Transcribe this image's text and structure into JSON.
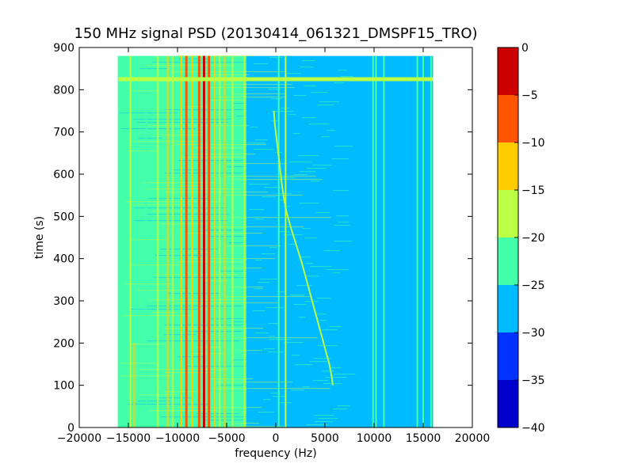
{
  "chart_data": {
    "type": "heatmap",
    "title": "150 MHz signal PSD (20130414_061321_DMSPF15_TRO)",
    "xlabel": "frequency (Hz)",
    "ylabel": "time (s)",
    "xlim": [
      -20000,
      20000
    ],
    "ylim": [
      0,
      900
    ],
    "xticks": [
      -20000,
      -15000,
      -10000,
      -5000,
      0,
      5000,
      10000,
      15000,
      20000
    ],
    "xtick_labels": [
      "−20000",
      "−15000",
      "−10000",
      "−5000",
      "0",
      "5000",
      "10000",
      "15000",
      "20000"
    ],
    "yticks": [
      0,
      100,
      200,
      300,
      400,
      500,
      600,
      700,
      800,
      900
    ],
    "ytick_labels": [
      "0",
      "100",
      "200",
      "300",
      "400",
      "500",
      "600",
      "700",
      "800",
      "900"
    ],
    "data_extent": {
      "x": [
        -16000,
        16000
      ],
      "y": [
        0,
        880
      ]
    },
    "colorbar": {
      "levels": [
        -40,
        -35,
        -30,
        -25,
        -20,
        -15,
        -10,
        -5,
        0
      ],
      "tick_labels": [
        "−40",
        "−35",
        "−30",
        "−25",
        "−20",
        "−15",
        "−10",
        "−5",
        "0"
      ],
      "colors": [
        "#0000cc",
        "#0033ff",
        "#00bbff",
        "#44ffaa",
        "#bbff44",
        "#ffcc00",
        "#ff5500",
        "#cc0000"
      ]
    },
    "background_fields": [
      {
        "x_range": [
          -16000,
          -3000
        ],
        "level_color": "#44ffaa"
      },
      {
        "x_range": [
          -3000,
          16000
        ],
        "level_color": "#00bbff"
      }
    ],
    "vertical_features": [
      {
        "x": -16000,
        "y_range": [
          0,
          880
        ],
        "color": "#44ffaa"
      },
      {
        "x": -14800,
        "y_range": [
          0,
          880
        ],
        "color": "#bbff44"
      },
      {
        "x": -14400,
        "y_range": [
          0,
          200
        ],
        "color": "#ffcc00"
      },
      {
        "x": -13200,
        "y_range": [
          0,
          880
        ],
        "color": "#44ffaa"
      },
      {
        "x": -12000,
        "y_range": [
          0,
          880
        ],
        "color": "#bbff44"
      },
      {
        "x": -11000,
        "y_range": [
          0,
          880
        ],
        "color": "#ffcc00"
      },
      {
        "x": -10500,
        "y_range": [
          0,
          880
        ],
        "color": "#bbff44"
      },
      {
        "x": -9600,
        "y_range": [
          0,
          880
        ],
        "color": "#ffcc00"
      },
      {
        "x": -9100,
        "y_range": [
          0,
          880
        ],
        "color": "#ff5500"
      },
      {
        "x": -8500,
        "y_range": [
          0,
          880
        ],
        "color": "#ffcc00"
      },
      {
        "x": -7800,
        "y_range": [
          0,
          880
        ],
        "color": "#ff5500"
      },
      {
        "x": -7300,
        "y_range": [
          0,
          880
        ],
        "color": "#cc0000"
      },
      {
        "x": -6800,
        "y_range": [
          0,
          880
        ],
        "color": "#ff5500"
      },
      {
        "x": -6200,
        "y_range": [
          0,
          880
        ],
        "color": "#ffcc00"
      },
      {
        "x": -5700,
        "y_range": [
          0,
          880
        ],
        "color": "#bbff44"
      },
      {
        "x": -5200,
        "y_range": [
          0,
          880
        ],
        "color": "#ffcc00"
      },
      {
        "x": -4400,
        "y_range": [
          0,
          880
        ],
        "color": "#bbff44"
      },
      {
        "x": -3200,
        "y_range": [
          0,
          880
        ],
        "color": "#bbff44"
      },
      {
        "x": 300,
        "y_range": [
          0,
          880
        ],
        "color": "#44ffaa"
      },
      {
        "x": 1000,
        "y_range": [
          0,
          880
        ],
        "color": "#bbff44"
      },
      {
        "x": 9900,
        "y_range": [
          0,
          880
        ],
        "color": "#44ffaa"
      },
      {
        "x": 10200,
        "y_range": [
          0,
          880
        ],
        "color": "#44ffaa"
      },
      {
        "x": 11000,
        "y_range": [
          0,
          880
        ],
        "color": "#44ffaa"
      },
      {
        "x": 14400,
        "y_range": [
          0,
          880
        ],
        "color": "#44ffaa"
      },
      {
        "x": 15000,
        "y_range": [
          0,
          880
        ],
        "color": "#44ffaa"
      },
      {
        "x": 15800,
        "y_range": [
          0,
          880
        ],
        "color": "#44ffaa"
      }
    ],
    "horizontal_features": [
      {
        "y": 825,
        "x_range": [
          -16000,
          16000
        ],
        "color": "#bbff44"
      }
    ],
    "doppler_trace": {
      "color": "#bbff44",
      "points": [
        [
          -200,
          750
        ],
        [
          -100,
          720
        ],
        [
          50,
          690
        ],
        [
          200,
          660
        ],
        [
          350,
          630
        ],
        [
          500,
          600
        ],
        [
          650,
          570
        ],
        [
          850,
          540
        ],
        [
          1100,
          510
        ],
        [
          1450,
          480
        ],
        [
          1850,
          450
        ],
        [
          2250,
          420
        ],
        [
          2650,
          390
        ],
        [
          3000,
          360
        ],
        [
          3350,
          330
        ],
        [
          3700,
          300
        ],
        [
          4050,
          270
        ],
        [
          4400,
          240
        ],
        [
          4750,
          210
        ],
        [
          5100,
          180
        ],
        [
          5450,
          150
        ],
        [
          5700,
          120
        ],
        [
          5800,
          100
        ]
      ]
    }
  }
}
